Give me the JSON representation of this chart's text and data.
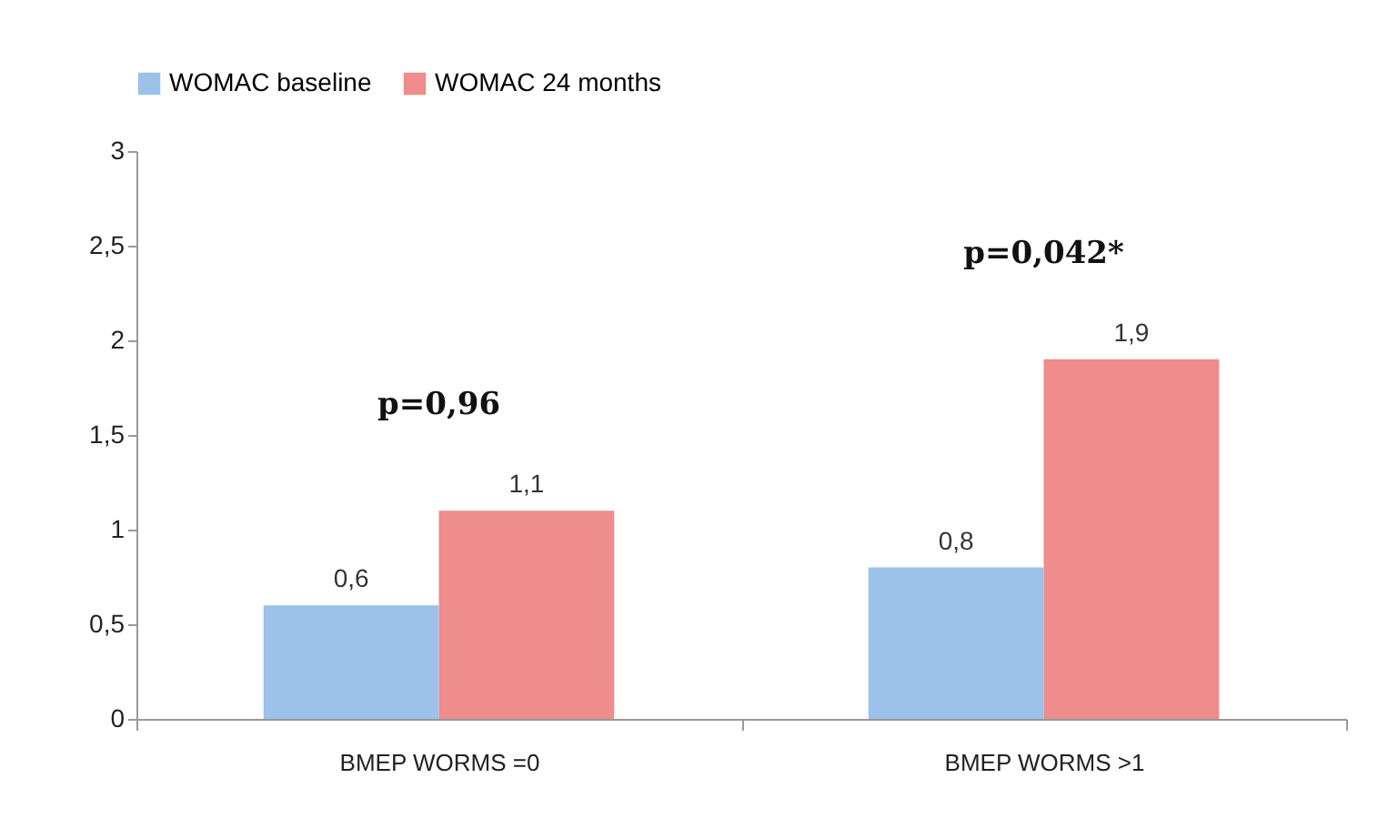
{
  "chart_data": {
    "type": "bar",
    "categories": [
      "BMEP WORMS =0",
      "BMEP WORMS >1"
    ],
    "series": [
      {
        "name": "WOMAC baseline",
        "color": "#9cc2ea",
        "values": [
          0.6,
          0.8
        ],
        "value_labels": [
          "0,6",
          "0,8"
        ]
      },
      {
        "name": "WOMAC 24 months",
        "color": "#ef8c8c",
        "values": [
          1.1,
          1.9
        ],
        "value_labels": [
          "1,1",
          "1,9"
        ]
      }
    ],
    "ylim": [
      0,
      3
    ],
    "yticks": [
      0,
      {
        "value": 0.5,
        "label": "0,5"
      },
      1,
      {
        "value": 1.5,
        "label": "1,5"
      },
      2,
      {
        "value": 2.5,
        "label": "2,5"
      },
      3
    ],
    "annotations": [
      "p=0,96",
      "p=0,042*"
    ],
    "legend": "top",
    "grid": false
  }
}
